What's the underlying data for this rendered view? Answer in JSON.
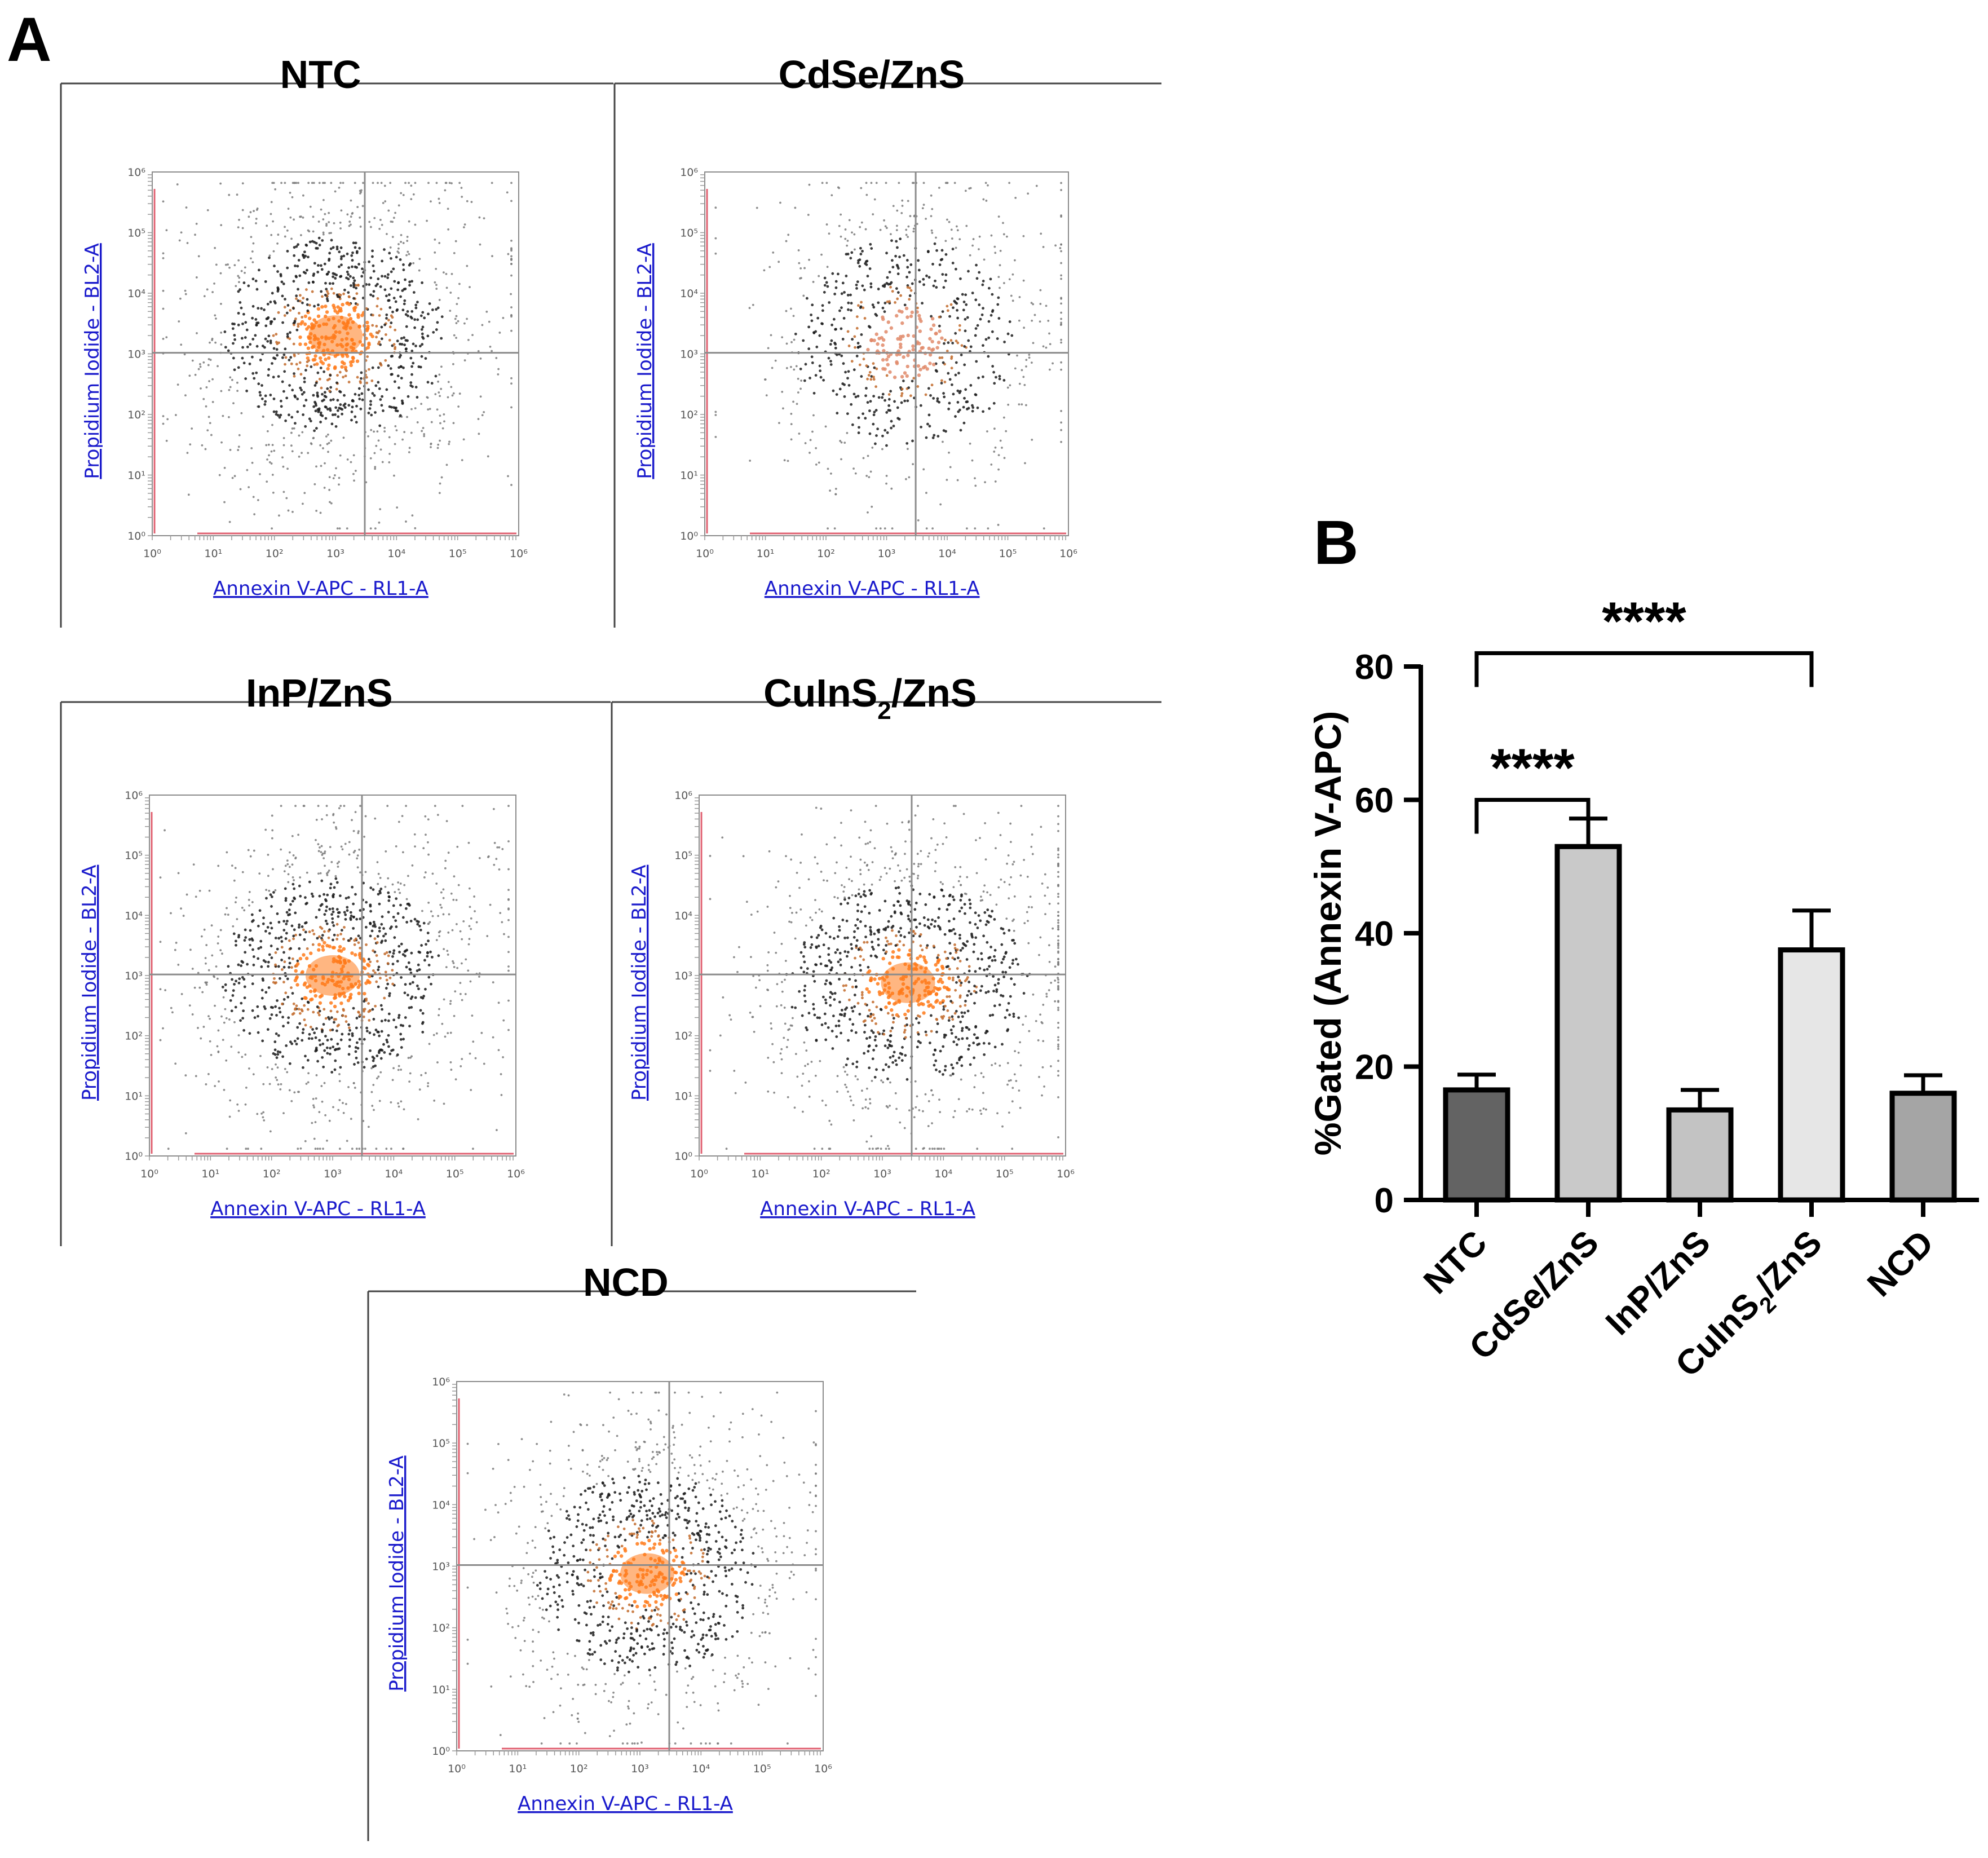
{
  "panel_labels": {
    "a": "A",
    "b": "B"
  },
  "flow_panels": [
    {
      "title": "NTC",
      "cells": 1400,
      "center": [
        0.5,
        0.45
      ],
      "spread": [
        0.19,
        0.17
      ],
      "density": "high"
    },
    {
      "title": "CdSe/ZnS",
      "cells": 900,
      "center": [
        0.55,
        0.47
      ],
      "spread": [
        0.19,
        0.18
      ],
      "density": "low"
    },
    {
      "title": "InP/ZnS",
      "title_sub": "",
      "cells": 1300,
      "center": [
        0.5,
        0.5
      ],
      "spread": [
        0.19,
        0.17
      ],
      "density": "high"
    },
    {
      "title": "CuInS",
      "title_sub": "2",
      "title_tail": "/ZnS",
      "cells": 1300,
      "center": [
        0.57,
        0.52
      ],
      "spread": [
        0.21,
        0.17
      ],
      "density": "high"
    },
    {
      "title": "NCD",
      "cells": 1200,
      "center": [
        0.52,
        0.52
      ],
      "spread": [
        0.19,
        0.17
      ],
      "density": "high"
    }
  ],
  "flow_axes": {
    "xlabel": "Annexin V-APC - RL1-A",
    "ylabel": "Propidium Iodide - BL2-A",
    "ticks": [
      "10⁰",
      "10¹",
      "10²",
      "10³",
      "10⁴",
      "10⁵",
      "10⁶"
    ]
  },
  "colors": {
    "bar_edge": "#000000",
    "dot_dark": "#1a1a1a",
    "dot_hot": "#ff7a1a",
    "axis_line": "#e06070",
    "gate_line": "#8c8c8c",
    "link_blue": "#1a1acc"
  },
  "chart_data": {
    "type": "bar",
    "title": "",
    "categories": [
      "NTC",
      "CdSe/ZnS",
      "InP/ZnS",
      "CuInS2/ZnS",
      "NCD"
    ],
    "category_labels": [
      {
        "text": "NTC"
      },
      {
        "text": "CdSe/ZnS"
      },
      {
        "text": "InP/ZnS"
      },
      {
        "text": "CuInS",
        "sub": "2",
        "tail": "/ZnS"
      },
      {
        "text": "NCD"
      }
    ],
    "values": [
      16.5,
      53.0,
      13.5,
      37.5,
      16.0
    ],
    "errors": [
      2.3,
      4.2,
      3.0,
      5.9,
      2.7
    ],
    "bar_colors": [
      "#636363",
      "#c9c9c9",
      "#c3c3c3",
      "#e6e6e6",
      "#a5a5a5"
    ],
    "xlabel": "",
    "ylabel": "%Gated (Annexin V-APC)",
    "ylim": [
      0,
      80
    ],
    "yticks": [
      0,
      20,
      40,
      60,
      80
    ],
    "significance": [
      {
        "from": 0,
        "to": 1,
        "label": "****",
        "level": 60
      },
      {
        "from": 0,
        "to": 3,
        "label": "****",
        "level": 82
      }
    ]
  }
}
